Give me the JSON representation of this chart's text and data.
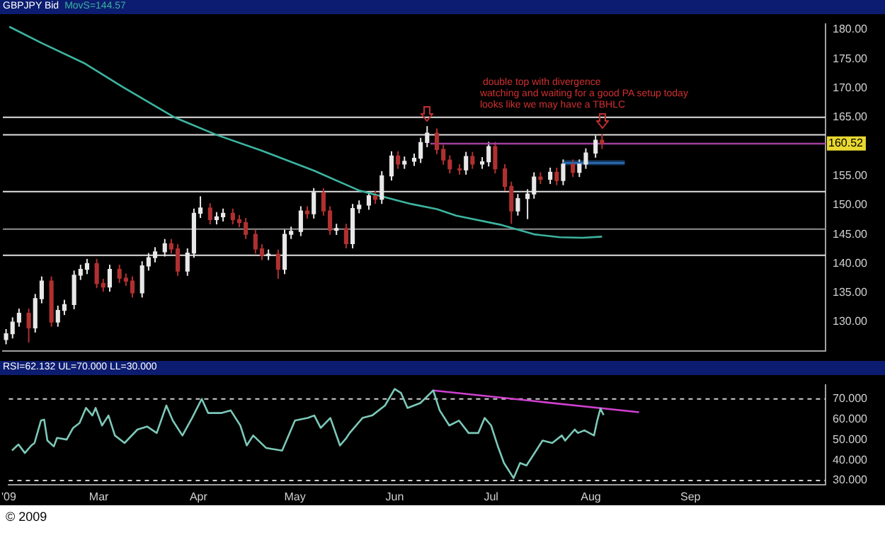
{
  "chart_data": [
    {
      "type": "candlestick",
      "title": "GBPJPY Bid",
      "x": [
        "2009-02-02",
        "2009-02-04",
        "2009-02-06",
        "2009-02-09",
        "2009-02-11",
        "2009-02-13",
        "2009-02-16",
        "2009-02-18",
        "2009-02-20",
        "2009-02-23",
        "2009-02-25",
        "2009-02-27",
        "2009-03-02",
        "2009-03-04",
        "2009-03-06",
        "2009-03-09",
        "2009-03-11",
        "2009-03-13",
        "2009-03-16",
        "2009-03-18",
        "2009-03-20",
        "2009-03-23",
        "2009-03-25",
        "2009-03-27",
        "2009-03-30",
        "2009-04-01",
        "2009-04-03",
        "2009-04-06",
        "2009-04-08",
        "2009-04-10",
        "2009-04-13",
        "2009-04-15",
        "2009-04-17",
        "2009-04-20",
        "2009-04-22",
        "2009-04-24",
        "2009-04-27",
        "2009-04-29",
        "2009-05-01",
        "2009-05-04",
        "2009-05-06",
        "2009-05-08",
        "2009-05-11",
        "2009-05-13",
        "2009-05-15",
        "2009-05-18",
        "2009-05-20",
        "2009-05-22",
        "2009-05-25",
        "2009-05-27",
        "2009-05-29",
        "2009-06-01",
        "2009-06-03",
        "2009-06-05",
        "2009-06-08",
        "2009-06-10",
        "2009-06-12",
        "2009-06-15",
        "2009-06-17",
        "2009-06-19",
        "2009-06-22",
        "2009-06-24",
        "2009-06-26",
        "2009-06-29",
        "2009-07-01",
        "2009-07-03",
        "2009-07-06",
        "2009-07-08",
        "2009-07-10",
        "2009-07-13",
        "2009-07-15",
        "2009-07-17",
        "2009-07-20",
        "2009-07-22",
        "2009-07-24",
        "2009-07-27",
        "2009-07-29",
        "2009-07-31",
        "2009-08-03",
        "2009-08-05"
      ],
      "ohlc": [
        [
          127,
          128.8,
          126.2,
          128
        ],
        [
          128,
          130.8,
          127.2,
          130
        ],
        [
          130,
          132.3,
          129.2,
          131.5
        ],
        [
          131.5,
          132.3,
          126.5,
          129
        ],
        [
          129,
          134.8,
          128.2,
          134
        ],
        [
          134,
          137.8,
          133.2,
          137
        ],
        [
          137,
          137.8,
          129.2,
          130
        ],
        [
          130,
          132.8,
          129.2,
          132
        ],
        [
          132,
          133.8,
          131.2,
          133
        ],
        [
          133,
          138.8,
          132.2,
          138
        ],
        [
          138,
          139.8,
          137.2,
          139
        ],
        [
          139,
          140.8,
          138.2,
          140
        ],
        [
          140,
          140.8,
          135.8,
          136.6
        ],
        [
          136.6,
          137.4,
          135.2,
          136
        ],
        [
          136,
          139.8,
          135.2,
          139
        ],
        [
          139,
          139.8,
          136.7,
          137.5
        ],
        [
          137.5,
          138.3,
          136.2,
          137
        ],
        [
          137,
          137.8,
          134.2,
          135
        ],
        [
          135,
          140.4,
          134.2,
          139.6
        ],
        [
          139.6,
          141.8,
          138.8,
          141
        ],
        [
          141,
          142.8,
          140.2,
          142
        ],
        [
          142,
          144.2,
          141.2,
          143.4
        ],
        [
          143.4,
          144.2,
          141.7,
          142.5
        ],
        [
          142.5,
          143.3,
          137.9,
          138.7
        ],
        [
          138.7,
          142.6,
          137.9,
          141.8
        ],
        [
          141.8,
          149.4,
          141,
          148.6
        ],
        [
          148.6,
          151.5,
          147.8,
          149.5
        ],
        [
          149.5,
          150.3,
          146.7,
          147.5
        ],
        [
          147.5,
          148.8,
          146.7,
          148
        ],
        [
          148,
          149.4,
          147.2,
          148.6
        ],
        [
          148.6,
          149.4,
          146.7,
          147.5
        ],
        [
          147.5,
          148.3,
          146.2,
          147
        ],
        [
          147,
          147.8,
          144.2,
          145
        ],
        [
          145,
          145.8,
          141.7,
          142.5
        ],
        [
          142.5,
          143.3,
          140.6,
          141.4
        ],
        [
          141.4,
          142.4,
          140.6,
          141.6
        ],
        [
          141.6,
          142.4,
          137.4,
          139
        ],
        [
          139,
          145.8,
          138.2,
          145
        ],
        [
          145,
          146.3,
          144.2,
          145.5
        ],
        [
          145.5,
          149.8,
          144.7,
          149
        ],
        [
          149,
          149.8,
          147.7,
          148.5
        ],
        [
          148.5,
          152.9,
          147.7,
          152.1
        ],
        [
          152.1,
          152.9,
          148.2,
          149
        ],
        [
          149,
          149.8,
          144.9,
          145.7
        ],
        [
          145.7,
          146.8,
          144.9,
          146
        ],
        [
          146,
          146.8,
          142.6,
          143.4
        ],
        [
          143.4,
          150.2,
          142.6,
          149.4
        ],
        [
          149.4,
          150.8,
          148.6,
          150
        ],
        [
          150,
          152.4,
          149.2,
          151.6
        ],
        [
          151.6,
          152.4,
          150.2,
          151
        ],
        [
          151,
          155.8,
          150.2,
          155
        ],
        [
          155,
          159.2,
          154.2,
          158.4
        ],
        [
          158.4,
          159.2,
          156.2,
          157
        ],
        [
          157,
          158.3,
          156.2,
          157.5
        ],
        [
          157.5,
          158.8,
          156.7,
          158
        ],
        [
          158,
          161.5,
          157.2,
          160.7
        ],
        [
          160.7,
          163.5,
          159.9,
          162.3
        ],
        [
          162.3,
          163.1,
          158.7,
          159.5
        ],
        [
          159.5,
          160.3,
          156.9,
          157.7
        ],
        [
          157.7,
          158.5,
          155.4,
          156.2
        ],
        [
          156.2,
          157,
          155.2,
          156
        ],
        [
          156,
          159.1,
          155.2,
          158.3
        ],
        [
          158.3,
          159.1,
          156.2,
          157
        ],
        [
          157,
          158.2,
          156.2,
          157.4
        ],
        [
          157.4,
          160.8,
          156.6,
          160
        ],
        [
          160,
          160.8,
          155.4,
          156.2
        ],
        [
          156.2,
          157,
          152.4,
          153.2
        ],
        [
          153.2,
          154,
          146.8,
          149
        ],
        [
          149,
          151.9,
          148.2,
          151.1
        ],
        [
          151.1,
          152.7,
          147.6,
          151.9
        ],
        [
          151.9,
          155.6,
          151.1,
          154.8
        ],
        [
          154.8,
          155.6,
          153.6,
          154.4
        ],
        [
          154.4,
          156.4,
          153.6,
          155.6
        ],
        [
          155.6,
          156.4,
          153.4,
          154.2
        ],
        [
          154.2,
          157.8,
          153.4,
          157
        ],
        [
          157,
          157.8,
          154.8,
          155.6
        ],
        [
          155.6,
          157.8,
          154.8,
          157
        ],
        [
          157,
          159.7,
          156.2,
          158.9
        ],
        [
          158.9,
          161.9,
          158.1,
          161.1
        ],
        [
          161.1,
          162.2,
          159.6,
          160.52
        ]
      ],
      "colors": [
        "#e8e8e8",
        "#e8e8e8",
        "#e8e8e8",
        "#b03030",
        "#e8e8e8",
        "#e8e8e8",
        "#b03030",
        "#e8e8e8",
        "#e8e8e8",
        "#e8e8e8",
        "#e8e8e8",
        "#e8e8e8",
        "#b03030",
        "#b03030",
        "#e8e8e8",
        "#b03030",
        "#b03030",
        "#b03030",
        "#e8e8e8",
        "#e8e8e8",
        "#e8e8e8",
        "#e8e8e8",
        "#b03030",
        "#b03030",
        "#e8e8e8",
        "#e8e8e8",
        "#e8e8e8",
        "#b03030",
        "#e8e8e8",
        "#e8e8e8",
        "#b03030",
        "#b03030",
        "#b03030",
        "#b03030",
        "#b03030",
        "#e8e8e8",
        "#b03030",
        "#e8e8e8",
        "#e8e8e8",
        "#e8e8e8",
        "#b03030",
        "#e8e8e8",
        "#b03030",
        "#b03030",
        "#e8e8e8",
        "#b03030",
        "#e8e8e8",
        "#e8e8e8",
        "#e8e8e8",
        "#b03030",
        "#e8e8e8",
        "#e8e8e8",
        "#b03030",
        "#e8e8e8",
        "#e8e8e8",
        "#e8e8e8",
        "#e8e8e8",
        "#b03030",
        "#b03030",
        "#b03030",
        "#b03030",
        "#e8e8e8",
        "#b03030",
        "#e8e8e8",
        "#e8e8e8",
        "#b03030",
        "#b03030",
        "#b03030",
        "#e8e8e8",
        "#e8e8e8",
        "#e8e8e8",
        "#b03030",
        "#e8e8e8",
        "#b03030",
        "#e8e8e8",
        "#b03030",
        "#e8e8e8",
        "#e8e8e8",
        "#e8e8e8",
        "#b03030"
      ],
      "series": [
        {
          "name": "MovS=144.57",
          "type": "line",
          "color": "#3cb4a0",
          "x": [
            "2009-02-03",
            "2009-02-13",
            "2009-02-26",
            "2009-03-10",
            "2009-03-26",
            "2009-04-08",
            "2009-04-22",
            "2009-05-08",
            "2009-05-22",
            "2009-06-07",
            "2009-06-15",
            "2009-06-21",
            "2009-07-05",
            "2009-07-15",
            "2009-07-23",
            "2009-07-30",
            "2009-08-05"
          ],
          "values": [
            180.5,
            177.7,
            174.3,
            170.2,
            165,
            162,
            159.3,
            155.9,
            152.5,
            150.2,
            149.3,
            148.2,
            146.6,
            145,
            144.5,
            144.4,
            144.6
          ]
        },
        {
          "type": "line",
          "color": "#a040a0",
          "x": [
            "2009-06-13",
            "2009-10-13"
          ],
          "values": [
            160.5,
            160.5
          ]
        },
        {
          "type": "line",
          "color": "#2a6ab0",
          "x": [
            "2009-07-24",
            "2009-08-12"
          ],
          "values": [
            157.2,
            157.2
          ],
          "lower": [
            156.8,
            156.8
          ],
          "upper": [
            157.7,
            157.7
          ]
        }
      ],
      "xlim": [
        "2009-02-01",
        "2009-10-13"
      ],
      "ylim": [
        125,
        181
      ],
      "yticks": [
        {
          "value": 130,
          "label": "130.00"
        },
        {
          "value": 135,
          "label": "135.00"
        },
        {
          "value": 140,
          "label": "140.00"
        },
        {
          "value": 145,
          "label": "145.00"
        },
        {
          "value": 150,
          "label": "150.00"
        },
        {
          "value": 155,
          "label": "155.00"
        },
        {
          "value": 165,
          "label": "165.00"
        },
        {
          "value": 170,
          "label": "170.00"
        },
        {
          "value": 175,
          "label": "175.00"
        },
        {
          "value": 180,
          "label": "180.00"
        }
      ],
      "tick_labels": "y",
      "marker": "none",
      "ref_lines": [
        {
          "axis": "y",
          "value": 165,
          "color": "#e0e0e0"
        },
        {
          "axis": "y",
          "value": 162,
          "color": "#e0e0e0"
        },
        {
          "axis": "y",
          "value": 152.3,
          "color": "#e0e0e0"
        },
        {
          "axis": "y",
          "value": 145.9,
          "color": "#909090"
        },
        {
          "axis": "y",
          "value": 141.4,
          "color": "#e0e0e0"
        }
      ],
      "annotations": [
        "double top with divergence",
        "watching and waiting for a good PA setup today",
        "looks like we may have a TBHLC",
        {
          "text": "160.52",
          "x": "2009-10-13",
          "y": 160.52
        }
      ]
    },
    {
      "type": "line",
      "title": "RSI=62.132 UL=70.000 LL=30.000",
      "marker": "none",
      "series": [
        {
          "color": "#7cc8b8",
          "x": [
            "2009-02-02",
            "2009-02-04",
            "2009-02-06",
            "2009-02-08",
            "2009-02-09",
            "2009-02-11",
            "2009-02-12",
            "2009-02-13",
            "2009-02-15",
            "2009-02-16",
            "2009-02-19",
            "2009-02-21",
            "2009-02-23",
            "2009-02-25",
            "2009-02-27",
            "2009-02-28",
            "2009-03-02",
            "2009-03-04",
            "2009-03-06",
            "2009-03-09",
            "2009-03-13",
            "2009-03-16",
            "2009-03-19",
            "2009-03-22",
            "2009-03-24",
            "2009-03-27",
            "2009-03-30",
            "2009-04-02",
            "2009-04-04",
            "2009-04-08",
            "2009-04-11",
            "2009-04-14",
            "2009-04-16",
            "2009-04-18",
            "2009-04-22",
            "2009-04-27",
            "2009-05-01",
            "2009-05-05",
            "2009-05-07",
            "2009-05-09",
            "2009-05-12",
            "2009-05-15",
            "2009-05-17",
            "2009-05-18",
            "2009-05-22",
            "2009-05-25",
            "2009-05-29",
            "2009-06-01",
            "2009-06-03",
            "2009-06-05",
            "2009-06-09",
            "2009-06-13",
            "2009-06-15",
            "2009-06-18",
            "2009-06-21",
            "2009-06-24",
            "2009-06-27",
            "2009-06-29",
            "2009-07-01",
            "2009-07-03",
            "2009-07-05",
            "2009-07-08",
            "2009-07-10",
            "2009-07-12",
            "2009-07-15",
            "2009-07-17",
            "2009-07-20",
            "2009-07-23",
            "2009-07-24",
            "2009-07-27",
            "2009-07-28",
            "2009-07-30",
            "2009-08-02",
            "2009-08-03",
            "2009-08-04",
            "2009-08-05"
          ],
          "values": [
            44.7,
            47.7,
            43.5,
            47.2,
            48.4,
            59.4,
            59.9,
            49.6,
            46.7,
            50.9,
            50.1,
            55.8,
            58.2,
            65.6,
            61.9,
            65.6,
            57,
            61.9,
            52.1,
            48.4,
            55,
            56.5,
            53.3,
            66.8,
            59.4,
            52.1,
            60.7,
            70,
            63.1,
            63.1,
            64.4,
            57,
            47.2,
            52.1,
            46,
            44.7,
            59.4,
            60.7,
            61.9,
            55.8,
            60.7,
            47.2,
            50.9,
            53.3,
            60.7,
            61.9,
            66.8,
            74.9,
            72.9,
            65.6,
            68,
            74.2,
            64.4,
            57,
            59.4,
            53.3,
            53.3,
            60.7,
            57,
            47.2,
            38.6,
            31.2,
            38.6,
            37.4,
            44.7,
            49.6,
            48.4,
            52.1,
            49.6,
            55,
            53.3,
            54.6,
            52.1,
            59.4,
            65.3,
            62.1
          ]
        },
        {
          "color": "#d040d0",
          "x": [
            "2009-06-13",
            "2009-08-16"
          ],
          "values": [
            74.2,
            63.5
          ]
        }
      ],
      "xlim": [
        "2009-02-01",
        "2009-10-13"
      ],
      "xticks": [
        {
          "value": "2009-02-01",
          "label": "'09"
        },
        {
          "value": "2009-03-01",
          "label": "Mar"
        },
        {
          "value": "2009-04-01",
          "label": "Apr"
        },
        {
          "value": "2009-05-01",
          "label": "May"
        },
        {
          "value": "2009-06-01",
          "label": "Jun"
        },
        {
          "value": "2009-07-01",
          "label": "Jul"
        },
        {
          "value": "2009-08-01",
          "label": "Aug"
        },
        {
          "value": "2009-09-01",
          "label": "Sep"
        }
      ],
      "ylim": [
        28,
        77
      ],
      "yticks": [
        {
          "value": 30,
          "label": "30.000"
        },
        {
          "value": 40,
          "label": "40.000"
        },
        {
          "value": 50,
          "label": "50.000"
        },
        {
          "value": 60,
          "label": "60.000"
        },
        {
          "value": 70,
          "label": "70.000"
        }
      ],
      "ref_lines": [
        {
          "axis": "y",
          "value": 70,
          "color": "#d0d0d0",
          "line_style": "dashed"
        },
        {
          "axis": "y",
          "value": 30,
          "color": "#d0d0d0",
          "line_style": "dashed"
        }
      ],
      "annotations": [
        "© 2009"
      ]
    }
  ]
}
